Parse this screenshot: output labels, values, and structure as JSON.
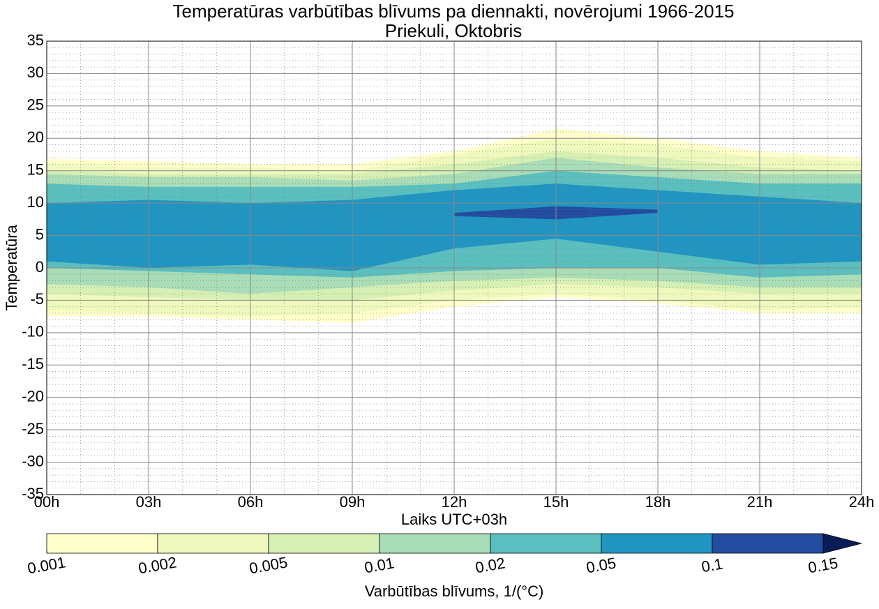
{
  "chart_data": {
    "type": "contour",
    "title": "Temperatūras varbūtības blīvums pa diennakti, novērojumi 1966-2015",
    "subtitle": "Priekuli, Oktobris",
    "x_label": "Laiks UTC+03h",
    "y_label": "Temperatūra",
    "x": [
      0,
      3,
      6,
      9,
      12,
      15,
      18,
      21,
      24
    ],
    "xlim": [
      0,
      24
    ],
    "xticks": [
      {
        "value": 0,
        "label": "00h"
      },
      {
        "value": 3,
        "label": "03h"
      },
      {
        "value": 6,
        "label": "06h"
      },
      {
        "value": 9,
        "label": "09h"
      },
      {
        "value": 12,
        "label": "12h"
      },
      {
        "value": 15,
        "label": "15h"
      },
      {
        "value": 18,
        "label": "18h"
      },
      {
        "value": 21,
        "label": "21h"
      },
      {
        "value": 24,
        "label": "24h"
      }
    ],
    "ylim": [
      -35,
      35
    ],
    "yticks": [
      -35,
      -30,
      -25,
      -20,
      -15,
      -10,
      -5,
      0,
      5,
      10,
      15,
      20,
      25,
      30,
      35
    ],
    "grid": true,
    "minor_grid_step": 1,
    "contours": [
      {
        "level": 0.001,
        "color": "#ffffcc",
        "upper": [
          16.8,
          16.5,
          16,
          16,
          18,
          21.5,
          20,
          18,
          17
        ],
        "lower": [
          -7.5,
          -7.5,
          -8,
          -8.5,
          -6,
          -4.5,
          -5.5,
          -7,
          -7
        ]
      },
      {
        "level": 0.002,
        "color": "#eff9bd",
        "upper": [
          16,
          15.5,
          15.5,
          15,
          17.5,
          20,
          19,
          17,
          16.5
        ],
        "lower": [
          -6.5,
          -7,
          -7.5,
          -7,
          -5,
          -4,
          -5,
          -6.5,
          -6
        ]
      },
      {
        "level": 0.005,
        "color": "#d6efb3",
        "upper": [
          15,
          14.5,
          14.5,
          14.5,
          16,
          18,
          17,
          15.5,
          15
        ],
        "lower": [
          -4,
          -4.5,
          -5,
          -5,
          -3.5,
          -2.5,
          -3,
          -4,
          -4
        ]
      },
      {
        "level": 0.01,
        "color": "#a9ddb7",
        "upper": [
          14.5,
          14,
          14,
          13.5,
          14.5,
          17,
          15.5,
          14.5,
          14.5
        ],
        "lower": [
          -2.5,
          -3,
          -4,
          -3,
          -2,
          -1.5,
          -2,
          -3,
          -3
        ]
      },
      {
        "level": 0.02,
        "color": "#5bbfc0",
        "upper": [
          13,
          12.5,
          12.5,
          12.5,
          13,
          15,
          14,
          13,
          13
        ],
        "lower": [
          0,
          -0.5,
          -1,
          -1.5,
          -0.5,
          0,
          0,
          -1.5,
          -1
        ]
      },
      {
        "level": 0.05,
        "color": "#2195c1",
        "upper": [
          10,
          10.5,
          10,
          10.5,
          12,
          13,
          12,
          11,
          10
        ],
        "lower": [
          1,
          0,
          0.5,
          -0.5,
          3,
          4.5,
          2.5,
          0.5,
          1
        ]
      },
      {
        "level": 0.1,
        "color": "#234ca1",
        "upper": [
          null,
          null,
          null,
          null,
          8.5,
          9.5,
          9,
          null,
          null
        ],
        "lower": [
          null,
          null,
          null,
          null,
          8,
          7.5,
          8.5,
          null,
          null
        ]
      }
    ],
    "colorbar": {
      "label": "Varbūtības blīvums, 1/(°C)",
      "ticks": [
        0.001,
        0.002,
        0.005,
        0.01,
        0.02,
        0.05,
        0.1,
        0.15
      ],
      "extend_color": "#081d58"
    }
  }
}
